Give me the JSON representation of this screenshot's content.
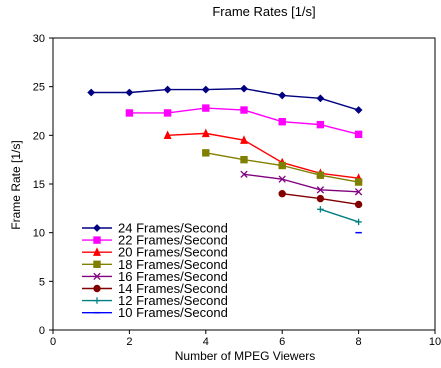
{
  "chart_data": {
    "type": "line",
    "title": "Frame Rates [1/s]",
    "xlabel": "Number of MPEG Viewers",
    "ylabel": "Frame Rate [1/s]",
    "xlim": [
      0,
      10
    ],
    "ylim": [
      0,
      30
    ],
    "x_ticks": [
      0,
      2,
      4,
      6,
      8,
      10
    ],
    "y_ticks": [
      0,
      5,
      10,
      15,
      20,
      25,
      30
    ],
    "grid": false,
    "legend_position": "bottom-left",
    "series": [
      {
        "name": "24 Frames/Second",
        "color": "#000080",
        "marker": "diamond",
        "x": [
          1,
          2,
          3,
          4,
          5,
          6,
          7,
          8
        ],
        "values": [
          24.4,
          24.4,
          24.7,
          24.7,
          24.8,
          24.1,
          23.8,
          22.6
        ]
      },
      {
        "name": "22 Frames/Second",
        "color": "#ff00ff",
        "marker": "square",
        "x": [
          2,
          3,
          4,
          5,
          6,
          7,
          8
        ],
        "values": [
          22.3,
          22.3,
          22.8,
          22.6,
          21.4,
          21.1,
          20.1
        ]
      },
      {
        "name": "20 Frames/Second",
        "color": "#ff0000",
        "marker": "triangle",
        "x": [
          3,
          4,
          5,
          6,
          7,
          8
        ],
        "values": [
          20.0,
          20.2,
          19.5,
          17.2,
          16.1,
          15.6
        ]
      },
      {
        "name": "18 Frames/Second",
        "color": "#808000",
        "marker": "square",
        "x": [
          4,
          5,
          6,
          7,
          8
        ],
        "values": [
          18.2,
          17.5,
          16.9,
          15.9,
          15.2
        ]
      },
      {
        "name": "16 Frames/Second",
        "color": "#800080",
        "marker": "x",
        "x": [
          5,
          6,
          7,
          8
        ],
        "values": [
          16.0,
          15.5,
          14.4,
          14.2
        ]
      },
      {
        "name": "14 Frames/Second",
        "color": "#800000",
        "marker": "circle",
        "x": [
          6,
          7,
          8
        ],
        "values": [
          14.0,
          13.5,
          12.9
        ]
      },
      {
        "name": "12 Frames/Second",
        "color": "#008080",
        "marker": "plus",
        "x": [
          7,
          8
        ],
        "values": [
          12.4,
          11.1
        ]
      },
      {
        "name": "10 Frames/Second",
        "color": "#0000ff",
        "marker": "dash",
        "x": [
          8
        ],
        "values": [
          10.0
        ]
      }
    ]
  }
}
